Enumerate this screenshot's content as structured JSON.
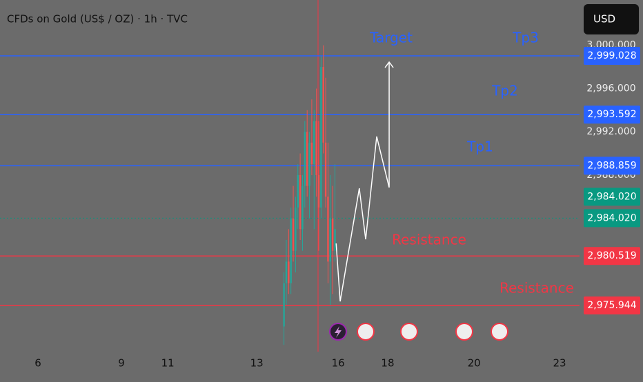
{
  "chart_data": {
    "type": "candlestick",
    "title": "CFDs on Gold (US$ / OZ) · 1h · TVC",
    "currency": "USD",
    "xlim": [
      0,
      20
    ],
    "ylim": [
      2971.67,
      3004.19
    ],
    "xticks": [
      {
        "value": 1.31,
        "label": "6"
      },
      {
        "value": 4.19,
        "label": "9"
      },
      {
        "value": 5.79,
        "label": "11"
      },
      {
        "value": 8.86,
        "label": "13"
      },
      {
        "value": 11.67,
        "label": "16"
      },
      {
        "value": 13.38,
        "label": "18"
      },
      {
        "value": 16.36,
        "label": "20"
      },
      {
        "value": 19.31,
        "label": "23"
      }
    ],
    "yticks": [
      {
        "value": 3000,
        "label": "3,000.000"
      },
      {
        "value": 2996,
        "label": "2,996.000"
      },
      {
        "value": 2992,
        "label": "2,992.000"
      },
      {
        "value": 2988,
        "label": "2,988.000"
      }
    ],
    "up_color": "#26a69a",
    "down_color": "#ef5350",
    "x": [
      9.8,
      9.88,
      9.96,
      10.04,
      10.12,
      10.2,
      10.28,
      10.36,
      10.44,
      10.52,
      10.6,
      10.68,
      10.76,
      10.84,
      10.92,
      11.0,
      11.08,
      11.16,
      11.24,
      11.32,
      11.4,
      11.48,
      11.56
    ],
    "open": [
      2974,
      2978,
      2980,
      2978,
      2984,
      2981,
      2985,
      2988,
      2983,
      2987,
      2992,
      2987,
      2991,
      2989,
      2993,
      2988,
      2985,
      2998,
      2991,
      2986,
      2980,
      2984,
      2981
    ],
    "high": [
      2979,
      2982,
      2983,
      2985,
      2987,
      2986,
      2989,
      2990,
      2988,
      2993,
      2994,
      2992,
      2995,
      2994,
      2996,
      2993,
      2999,
      3000,
      2997,
      2991,
      2988,
      2987,
      2989
    ],
    "low": [
      2972.3,
      2976,
      2977,
      2977,
      2980,
      2979,
      2983,
      2982,
      2981,
      2985,
      2986,
      2984,
      2988,
      2983,
      2986,
      2981,
      2984,
      2990,
      2985,
      2978,
      2976,
      2977,
      2980
    ],
    "close": [
      2978,
      2980,
      2978,
      2984,
      2981,
      2985,
      2988,
      2983,
      2987,
      2992,
      2987,
      2991,
      2989,
      2993,
      2988,
      2985,
      2998,
      2991,
      2986,
      2980,
      2984,
      2981,
      2983
    ],
    "levels": [
      {
        "value": 2999.028,
        "label": "2,999.028",
        "color": "#2962ff"
      },
      {
        "value": 2993.592,
        "label": "2,993.592",
        "color": "#2962ff"
      },
      {
        "value": 2988.859,
        "label": "2,988.859",
        "color": "#2962ff"
      },
      {
        "value": 2984.02,
        "label": "2,984.020",
        "color": "#089981"
      },
      {
        "value": 2984.02,
        "label": "2,984.020",
        "color": "#089981"
      },
      {
        "value": 2980.519,
        "label": "2,980.519",
        "color": "#f23645"
      },
      {
        "value": 2975.944,
        "label": "2,975.944",
        "color": "#f23645"
      }
    ],
    "projection": {
      "color": "#ffffff",
      "x": [
        11.6,
        11.74,
        12.4,
        12.62,
        13.0,
        13.43,
        13.43
      ],
      "values": [
        2981.68,
        2976.32,
        2986.78,
        2982.06,
        2991.57,
        2986.85,
        2998.45
      ]
    },
    "annotations": [
      {
        "text": "Target",
        "color": "#2962ff"
      },
      {
        "text": "Tp3",
        "color": "#2962ff"
      },
      {
        "text": "Tp2",
        "color": "#2962ff"
      },
      {
        "text": "Tp1",
        "color": "#2962ff"
      },
      {
        "text": "Resistance",
        "color": "#f23645"
      },
      {
        "text": "Resistance",
        "color": "#f23645"
      }
    ]
  }
}
